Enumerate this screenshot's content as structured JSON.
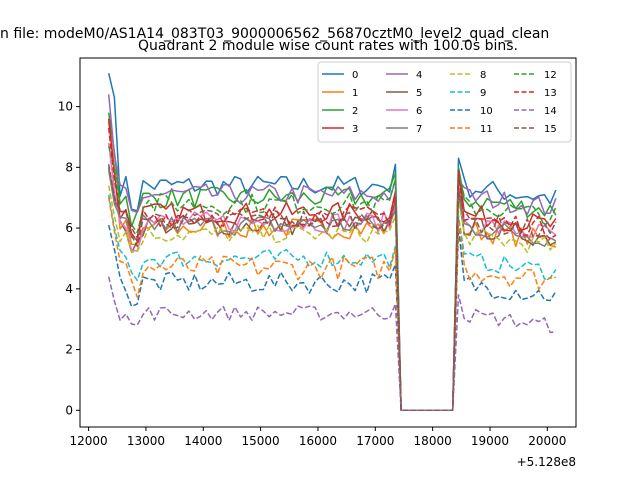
{
  "figure": {
    "suptitle": "n file: modeM0/AS1A14_083T03_9000006562_56870cztM0_level2_quad_clean",
    "offset_label": "+5.128e8"
  },
  "chart_data": {
    "type": "line",
    "title": "Quadrant 2 module wise count rates with 100.0s bins.",
    "xlabel": "",
    "ylabel": "",
    "x_offset": 512800000,
    "xlim": [
      11850,
      20500
    ],
    "ylim": [
      -0.55,
      11.6
    ],
    "x_ticks": [
      12000,
      13000,
      14000,
      15000,
      16000,
      17000,
      18000,
      19000,
      20000
    ],
    "y_ticks": [
      0,
      2,
      4,
      6,
      8,
      10
    ],
    "x_range": [
      12350,
      20150
    ],
    "bin": 100,
    "gap": [
      17450,
      18350
    ],
    "legend_position": "upper right",
    "legend_columns": 4,
    "series": [
      {
        "name": "0",
        "color": "#1f77b4",
        "dash": "solid",
        "first": 11.1,
        "second": 10.3,
        "mean": 7.4,
        "amp": 0.35,
        "peak": 8.1,
        "post": 8.3
      },
      {
        "name": "1",
        "color": "#ff7f0e",
        "dash": "solid",
        "first": 9.5,
        "second": 8.0,
        "mean": 6.0,
        "amp": 0.35,
        "peak": 6.6,
        "post": 7.7
      },
      {
        "name": "2",
        "color": "#2ca02c",
        "dash": "solid",
        "first": 9.8,
        "second": 8.5,
        "mean": 7.0,
        "amp": 0.35,
        "peak": 7.8,
        "post": 8.0
      },
      {
        "name": "3",
        "color": "#d62728",
        "dash": "solid",
        "first": 9.6,
        "second": 7.8,
        "mean": 6.5,
        "amp": 0.35,
        "peak": 7.2,
        "post": 7.9
      },
      {
        "name": "4",
        "color": "#9467bd",
        "dash": "solid",
        "first": 10.4,
        "second": 8.4,
        "mean": 7.1,
        "amp": 0.35,
        "peak": 7.6,
        "post": 7.6
      },
      {
        "name": "5",
        "color": "#8c564b",
        "dash": "solid",
        "first": 8.0,
        "second": 7.0,
        "mean": 6.1,
        "amp": 0.35,
        "peak": 6.9,
        "post": 7.2
      },
      {
        "name": "6",
        "color": "#e377c2",
        "dash": "solid",
        "first": 8.8,
        "second": 7.2,
        "mean": 6.2,
        "amp": 0.35,
        "peak": 6.8,
        "post": 7.5
      },
      {
        "name": "7",
        "color": "#7f7f7f",
        "dash": "solid",
        "first": 7.9,
        "second": 6.8,
        "mean": 6.1,
        "amp": 0.35,
        "peak": 6.6,
        "post": 7.3
      },
      {
        "name": "8",
        "color": "#bcbd22",
        "dash": "dashed",
        "first": 7.4,
        "second": 6.4,
        "mean": 5.8,
        "amp": 0.3,
        "peak": 6.4,
        "post": 6.9
      },
      {
        "name": "9",
        "color": "#17becf",
        "dash": "dashed",
        "first": 7.1,
        "second": 6.0,
        "mean": 5.0,
        "amp": 0.3,
        "peak": 5.4,
        "post": 6.4
      },
      {
        "name": "10",
        "color": "#1f77b4",
        "dash": "dashed",
        "first": 6.1,
        "second": 5.3,
        "mean": 4.2,
        "amp": 0.35,
        "peak": 4.8,
        "post": 6.0
      },
      {
        "name": "11",
        "color": "#ff7f0e",
        "dash": "dashed",
        "first": 7.0,
        "second": 5.9,
        "mean": 4.7,
        "amp": 0.4,
        "peak": 5.3,
        "post": 6.3
      },
      {
        "name": "12",
        "color": "#2ca02c",
        "dash": "dashed",
        "first": 8.7,
        "second": 8.0,
        "mean": 6.8,
        "amp": 0.35,
        "peak": 7.6,
        "post": 7.8
      },
      {
        "name": "13",
        "color": "#d62728",
        "dash": "dashed",
        "first": 9.3,
        "second": 7.6,
        "mean": 6.4,
        "amp": 0.35,
        "peak": 7.0,
        "post": 7.8
      },
      {
        "name": "14",
        "color": "#9467bd",
        "dash": "dashed",
        "first": 4.4,
        "second": 3.6,
        "mean": 3.2,
        "amp": 0.25,
        "peak": 3.5,
        "post": 3.8
      },
      {
        "name": "15",
        "color": "#8c564b",
        "dash": "dashed",
        "first": 8.1,
        "second": 7.0,
        "mean": 6.3,
        "amp": 0.35,
        "peak": 6.9,
        "post": 7.2
      }
    ]
  }
}
